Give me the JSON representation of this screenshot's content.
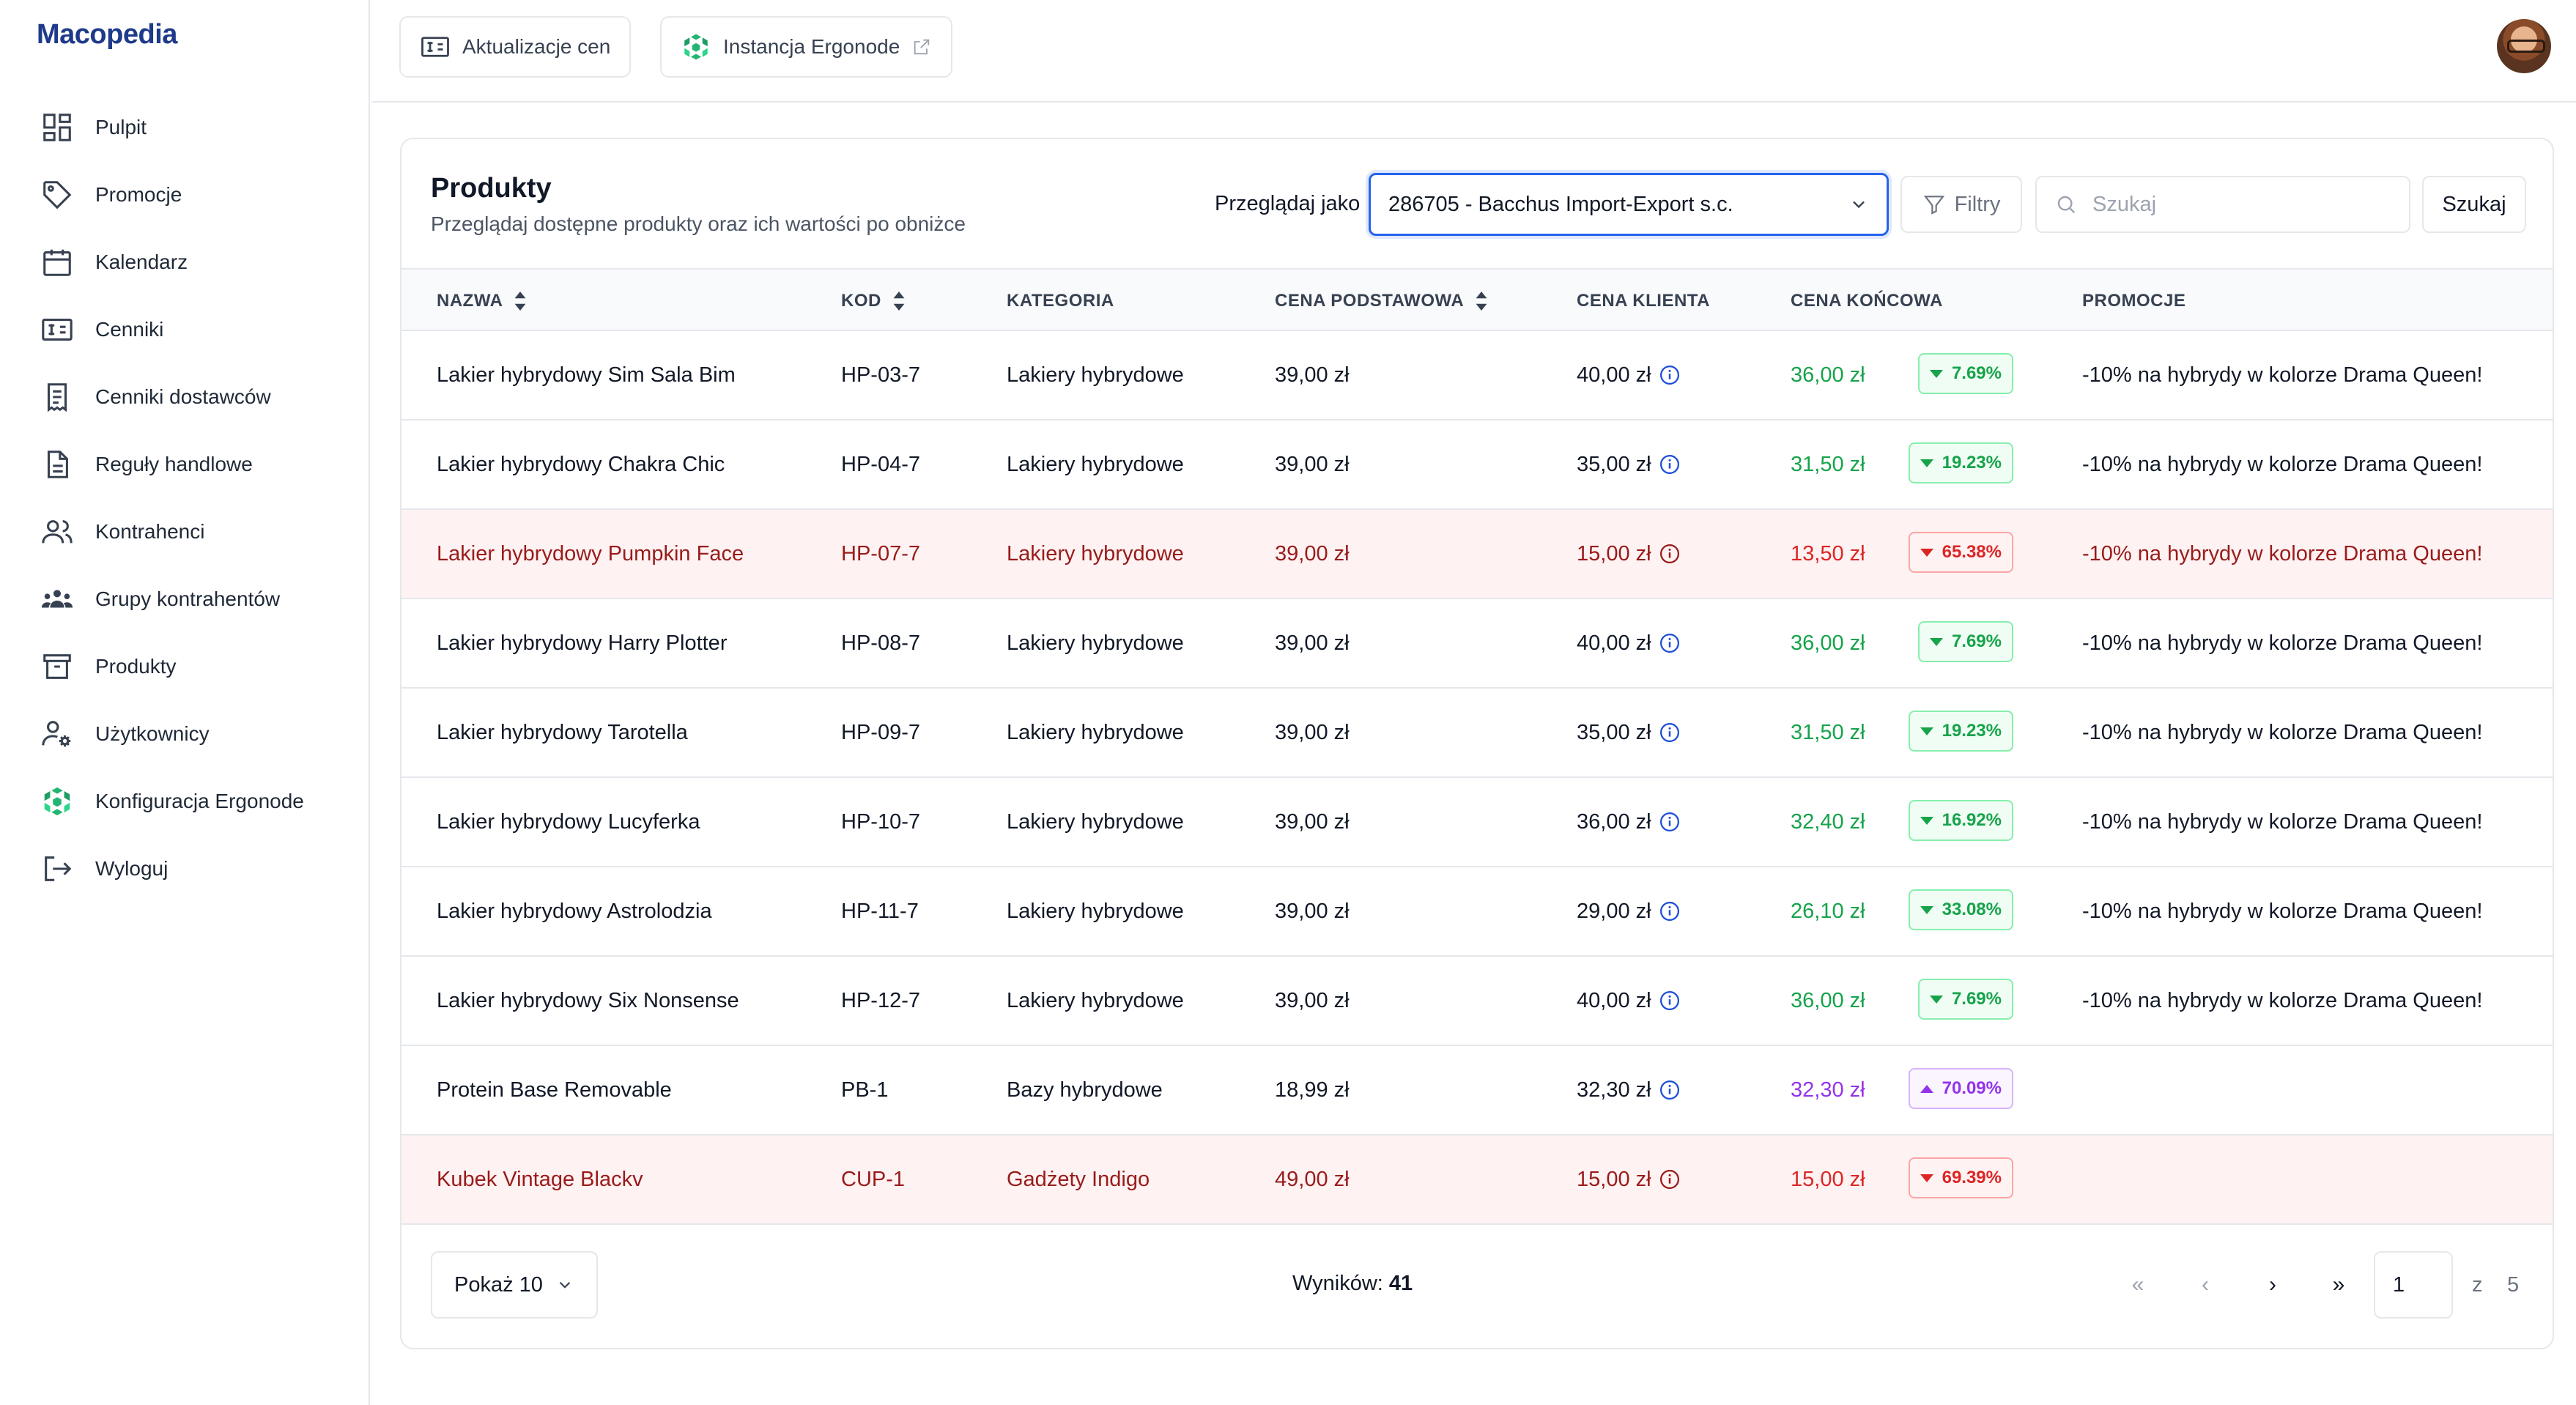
{
  "app": {
    "logo": "Macopedia"
  },
  "sidebar": {
    "items": [
      {
        "label": "Pulpit",
        "icon": "dashboard-icon"
      },
      {
        "label": "Promocje",
        "icon": "tag-icon"
      },
      {
        "label": "Kalendarz",
        "icon": "calendar-icon"
      },
      {
        "label": "Cenniki",
        "icon": "pricelist-icon"
      },
      {
        "label": "Cenniki dostawców",
        "icon": "receipt-icon"
      },
      {
        "label": "Reguły handlowe",
        "icon": "document-icon"
      },
      {
        "label": "Kontrahenci",
        "icon": "users-icon"
      },
      {
        "label": "Grupy kontrahentów",
        "icon": "user-group-icon"
      },
      {
        "label": "Produkty",
        "icon": "archive-box-icon"
      },
      {
        "label": "Użytkownicy",
        "icon": "user-gear-icon"
      },
      {
        "label": "Konfiguracja Ergonode",
        "icon": "ergonode-icon"
      },
      {
        "label": "Wyloguj",
        "icon": "logout-icon"
      }
    ]
  },
  "topbar": {
    "price_updates_label": "Aktualizacje cen",
    "ergonode_label": "Instancja Ergonode"
  },
  "products": {
    "title": "Produkty",
    "subtitle": "Przeglądaj dostępne produkty oraz ich wartości po obniżce",
    "browse_as_label": "Przeglądaj jako",
    "browse_as_value": "286705 - Bacchus Import-Export s.c.",
    "filters_label": "Filtry",
    "search_placeholder": "Szukaj",
    "search_button": "Szukaj",
    "columns": {
      "name": "NAZWA",
      "code": "KOD",
      "category": "KATEGORIA",
      "base_price": "CENA PODSTAWOWA",
      "client_price": "CENA KLIENTA",
      "final_price": "CENA KOŃCOWA",
      "promotions": "PROMOCJE"
    },
    "rows": [
      {
        "name": "Lakier hybrydowy Sim Sala Bim",
        "code": "HP-03-7",
        "category": "Lakiery hybrydowe",
        "base": "39,00 zł",
        "client": "40,00 zł",
        "final": "36,00 zł",
        "change": "7.69%",
        "status": "green",
        "dir": "down",
        "promo": "-10% na hybrydy w kolorze Drama Queen!"
      },
      {
        "name": "Lakier hybrydowy Chakra Chic",
        "code": "HP-04-7",
        "category": "Lakiery hybrydowe",
        "base": "39,00 zł",
        "client": "35,00 zł",
        "final": "31,50 zł",
        "change": "19.23%",
        "status": "green",
        "dir": "down",
        "promo": "-10% na hybrydy w kolorze Drama Queen!"
      },
      {
        "name": "Lakier hybrydowy Pumpkin Face",
        "code": "HP-07-7",
        "category": "Lakiery hybrydowe",
        "base": "39,00 zł",
        "client": "15,00 zł",
        "final": "13,50 zł",
        "change": "65.38%",
        "status": "red",
        "dir": "down",
        "promo": "-10% na hybrydy w kolorze Drama Queen!"
      },
      {
        "name": "Lakier hybrydowy Harry Plotter",
        "code": "HP-08-7",
        "category": "Lakiery hybrydowe",
        "base": "39,00 zł",
        "client": "40,00 zł",
        "final": "36,00 zł",
        "change": "7.69%",
        "status": "green",
        "dir": "down",
        "promo": "-10% na hybrydy w kolorze Drama Queen!"
      },
      {
        "name": "Lakier hybrydowy Tarotella",
        "code": "HP-09-7",
        "category": "Lakiery hybrydowe",
        "base": "39,00 zł",
        "client": "35,00 zł",
        "final": "31,50 zł",
        "change": "19.23%",
        "status": "green",
        "dir": "down",
        "promo": "-10% na hybrydy w kolorze Drama Queen!"
      },
      {
        "name": "Lakier hybrydowy Lucyferka",
        "code": "HP-10-7",
        "category": "Lakiery hybrydowe",
        "base": "39,00 zł",
        "client": "36,00 zł",
        "final": "32,40 zł",
        "change": "16.92%",
        "status": "green",
        "dir": "down",
        "promo": "-10% na hybrydy w kolorze Drama Queen!"
      },
      {
        "name": "Lakier hybrydowy Astrolodzia",
        "code": "HP-11-7",
        "category": "Lakiery hybrydowe",
        "base": "39,00 zł",
        "client": "29,00 zł",
        "final": "26,10 zł",
        "change": "33.08%",
        "status": "green",
        "dir": "down",
        "promo": "-10% na hybrydy w kolorze Drama Queen!"
      },
      {
        "name": "Lakier hybrydowy Six Nonsense",
        "code": "HP-12-7",
        "category": "Lakiery hybrydowe",
        "base": "39,00 zł",
        "client": "40,00 zł",
        "final": "36,00 zł",
        "change": "7.69%",
        "status": "green",
        "dir": "down",
        "promo": "-10% na hybrydy w kolorze Drama Queen!"
      },
      {
        "name": "Protein Base Removable",
        "code": "PB-1",
        "category": "Bazy hybrydowe",
        "base": "18,99 zł",
        "client": "32,30 zł",
        "final": "32,30 zł",
        "change": "70.09%",
        "status": "purple",
        "dir": "up",
        "promo": ""
      },
      {
        "name": "Kubek Vintage Blackv",
        "code": "CUP-1",
        "category": "Gadżety Indigo",
        "base": "49,00 zł",
        "client": "15,00 zł",
        "final": "15,00 zł",
        "change": "69.39%",
        "status": "red",
        "dir": "down",
        "promo": ""
      }
    ]
  },
  "footer": {
    "show_label": "Pokaż 10",
    "results_label": "Wyników:",
    "results_count": "41",
    "first_glyph": "«",
    "prev_glyph": "‹",
    "next_glyph": "›",
    "last_glyph": "»",
    "page_value": "1",
    "of_label": "z",
    "total_pages": "5"
  },
  "colors": {
    "brand": "#1e3a8a",
    "accent": "#2563eb",
    "positive": "#16a34a",
    "negative": "#dc2626",
    "increase": "#9333ea",
    "warning_row": "#fef2f2"
  }
}
